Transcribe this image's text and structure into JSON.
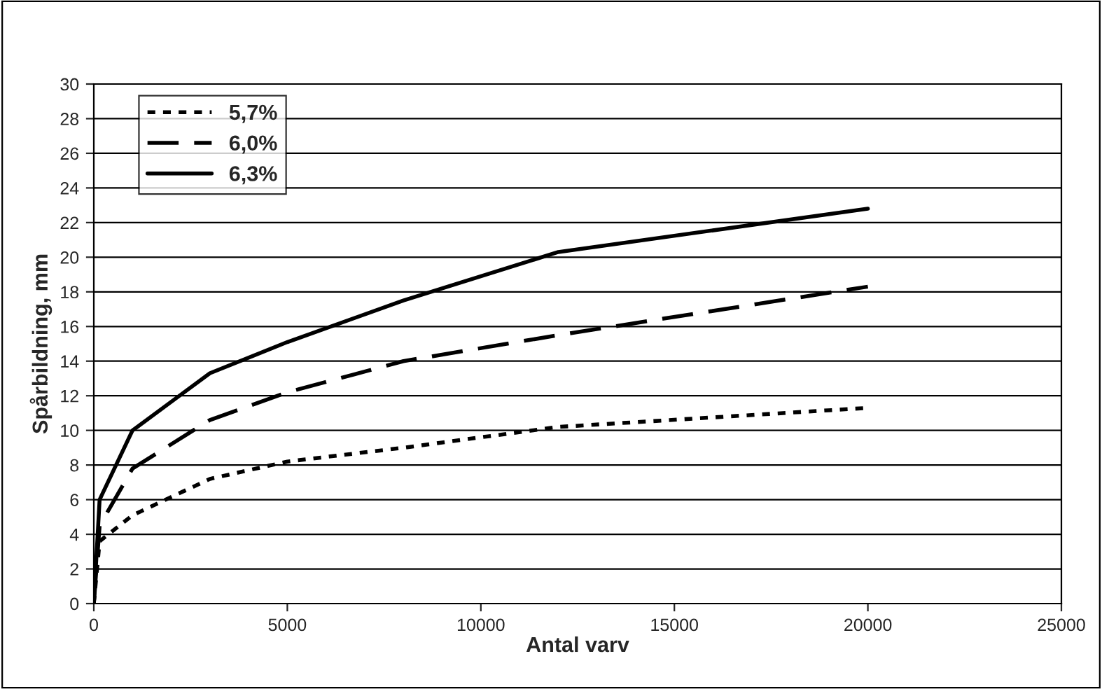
{
  "chart_data": {
    "type": "line",
    "xlabel": "Antal varv",
    "ylabel": "Spårbildning, mm",
    "xlim": [
      0,
      25000
    ],
    "xticks": [
      0,
      5000,
      10000,
      15000,
      20000,
      25000
    ],
    "ylim": [
      0,
      30
    ],
    "yticks": [
      0,
      2,
      4,
      6,
      8,
      10,
      12,
      14,
      16,
      18,
      20,
      22,
      24,
      26,
      28,
      30
    ],
    "grid": "y",
    "legend": "top left",
    "series": [
      {
        "name": "5,7%",
        "color": "#000000",
        "line_style": "dotted",
        "x": [
          0,
          150,
          1000,
          3000,
          5000,
          8000,
          12000,
          20000
        ],
        "values": [
          0,
          3.6,
          5.1,
          7.2,
          8.2,
          9.0,
          10.2,
          11.3
        ]
      },
      {
        "name": "6,0%",
        "color": "#000000",
        "line_style": "dashed",
        "x": [
          0,
          150,
          1000,
          3000,
          5000,
          8000,
          12000,
          20000
        ],
        "values": [
          0,
          4.5,
          7.8,
          10.6,
          12.2,
          14.0,
          15.5,
          18.3
        ]
      },
      {
        "name": "6,3%",
        "color": "#000000",
        "line_style": "solid",
        "x": [
          0,
          150,
          1000,
          3000,
          5000,
          8000,
          12000,
          20000
        ],
        "values": [
          0,
          6.0,
          10.0,
          13.3,
          15.1,
          17.5,
          20.3,
          22.8
        ]
      }
    ]
  }
}
